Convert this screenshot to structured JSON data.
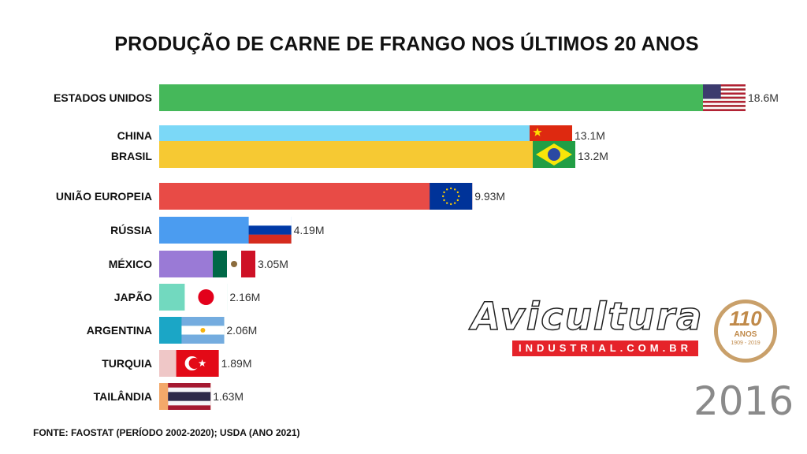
{
  "title": "PRODUÇÃO DE CARNE DE FRANGO NOS ÚLTIMOS 20 ANOS",
  "source": "FONTE: FAOSTAT (PERÍODO 2002-2020); USDA (ANO 2021)",
  "year": "2016",
  "logo": {
    "word": "Avicultura",
    "sub": "INDUSTRIAL.COM.BR",
    "seal_number": "110",
    "seal_text": "ANOS",
    "seal_years": "1909 - 2019"
  },
  "chart_data": {
    "type": "bar",
    "orientation": "horizontal",
    "unit": "M",
    "categories": [
      "ESTADOS UNIDOS",
      "CHINA",
      "BRASIL",
      "UNIÃO EUROPEIA",
      "RÚSSIA",
      "MÉXICO",
      "JAPÃO",
      "ARGENTINA",
      "TURQUIA",
      "TAILÂNDIA"
    ],
    "values": [
      18.6,
      13.1,
      13.2,
      9.93,
      4.19,
      3.05,
      2.16,
      2.06,
      1.89,
      1.63
    ],
    "value_labels": [
      "18.6M",
      "13.1M",
      "13.2M",
      "9.93M",
      "4.19M",
      "3.05M",
      "2.16M",
      "2.06M",
      "1.89M",
      "1.63M"
    ],
    "colors": [
      "#45b85a",
      "#7bd8f7",
      "#f6c933",
      "#e84b46",
      "#4b9cf0",
      "#9a7ad6",
      "#72d9bf",
      "#1ba6c6",
      "#efc7c7",
      "#f3a86a"
    ],
    "flags": [
      "us-flag",
      "china-flag",
      "brazil-flag",
      "eu-flag",
      "russia-flag",
      "mexico-flag",
      "japan-flag",
      "argentina-flag",
      "turkey-flag",
      "thailand-flag"
    ],
    "grid": false,
    "legend": "none"
  }
}
